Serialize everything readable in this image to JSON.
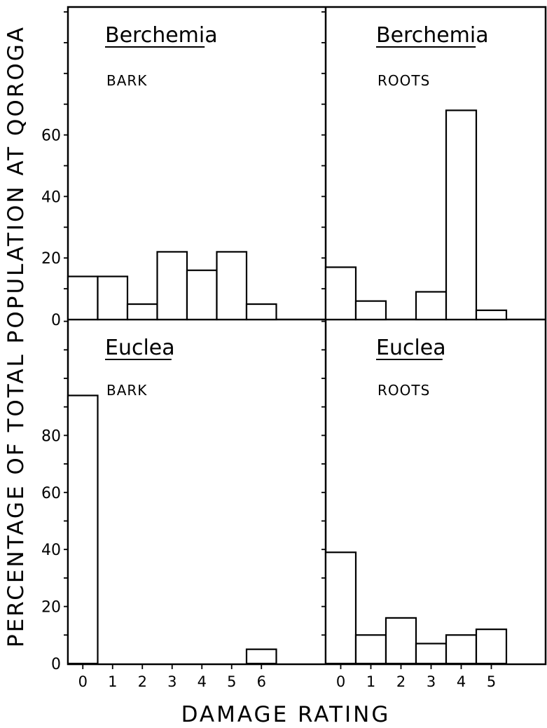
{
  "chart_data": {
    "type": "bar",
    "ylabel": "PERCENTAGE OF TOTAL POPULATION AT QOROGA",
    "xlabel": "DAMAGE RATING",
    "panels": [
      {
        "title": "Berchemia",
        "subtitle": "BARK",
        "x": [
          0,
          1,
          2,
          3,
          4,
          5,
          6
        ],
        "values": [
          14,
          14,
          5,
          22,
          16,
          22,
          5
        ],
        "ytick_labels": [
          "0",
          "20",
          "40",
          "60"
        ],
        "xtick_labels": []
      },
      {
        "title": "Berchemia",
        "subtitle": "ROOTS",
        "x": [
          0,
          1,
          2,
          3,
          4,
          5
        ],
        "values": [
          17,
          6,
          0,
          9,
          68,
          3
        ],
        "ytick_labels": [],
        "xtick_labels": []
      },
      {
        "title": "Euclea",
        "subtitle": "BARK",
        "x": [
          0,
          1,
          2,
          3,
          4,
          5,
          6
        ],
        "values": [
          94,
          0,
          0,
          0,
          0,
          0,
          5
        ],
        "ytick_labels": [
          "0",
          "20",
          "40",
          "60",
          "80"
        ],
        "xtick_labels": [
          "0",
          "1",
          "2",
          "3",
          "4",
          "5",
          "6"
        ]
      },
      {
        "title": "Euclea",
        "subtitle": "ROOTS",
        "x": [
          0,
          1,
          2,
          3,
          4,
          5
        ],
        "values": [
          39,
          10,
          16,
          7,
          10,
          12
        ],
        "ytick_labels": [],
        "xtick_labels": [
          "0",
          "1",
          "2",
          "3",
          "4",
          "5"
        ]
      }
    ]
  }
}
